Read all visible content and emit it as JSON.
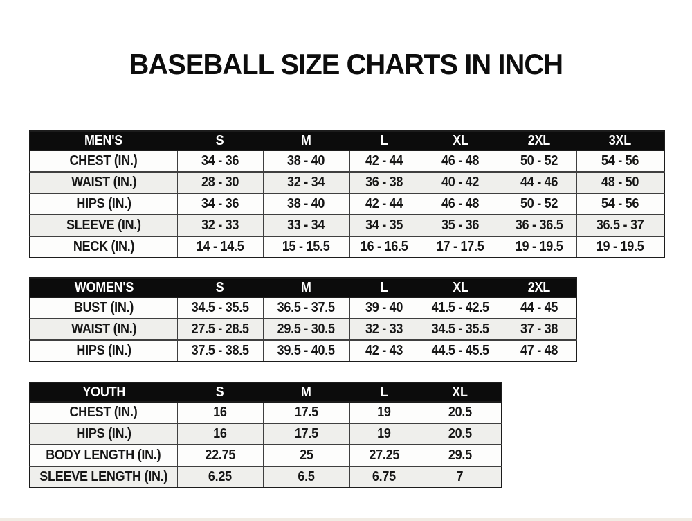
{
  "page_title": "BASEBALL SIZE CHARTS IN INCH",
  "colors": {
    "page_background": "#ffffff",
    "header_bg": "#0c0c0c",
    "header_text": "#ffffff",
    "row_white": "#fdfdfc",
    "row_gray": "#efefec",
    "text": "#161616"
  },
  "chart_data": [
    {
      "type": "table",
      "title": "MEN'S",
      "columns": [
        "MEN'S",
        "S",
        "M",
        "L",
        "XL",
        "2XL",
        "3XL"
      ],
      "rows": [
        [
          "CHEST (IN.)",
          "34 - 36",
          "38 - 40",
          "42 - 44",
          "46 - 48",
          "50 - 52",
          "54 - 56"
        ],
        [
          "WAIST (IN.)",
          "28 - 30",
          "32 - 34",
          "36 - 38",
          "40 - 42",
          "44 - 46",
          "48 - 50"
        ],
        [
          "HIPS (IN.)",
          "34 - 36",
          "38 - 40",
          "42 - 44",
          "46 - 48",
          "50 - 52",
          "54 - 56"
        ],
        [
          "SLEEVE (IN.)",
          "32 - 33",
          "33 - 34",
          "34 - 35",
          "35 - 36",
          "36 - 36.5",
          "36.5 - 37"
        ],
        [
          "NECK (IN.)",
          "14 - 14.5",
          "15 - 15.5",
          "16 - 16.5",
          "17 - 17.5",
          "19 - 19.5",
          "19 - 19.5"
        ]
      ]
    },
    {
      "type": "table",
      "title": "WOMEN'S",
      "columns": [
        "WOMEN'S",
        "S",
        "M",
        "L",
        "XL",
        "2XL"
      ],
      "rows": [
        [
          "BUST (IN.)",
          "34.5 - 35.5",
          "36.5 - 37.5",
          "39 - 40",
          "41.5 - 42.5",
          "44 - 45"
        ],
        [
          "WAIST (IN.)",
          "27.5 - 28.5",
          "29.5 - 30.5",
          "32 - 33",
          "34.5 - 35.5",
          "37 - 38"
        ],
        [
          "HIPS (IN.)",
          "37.5 - 38.5",
          "39.5 - 40.5",
          "42 - 43",
          "44.5 - 45.5",
          "47 - 48"
        ]
      ]
    },
    {
      "type": "table",
      "title": "YOUTH",
      "columns": [
        "YOUTH",
        "S",
        "M",
        "L",
        "XL"
      ],
      "rows": [
        [
          "CHEST (IN.)",
          "16",
          "17.5",
          "19",
          "20.5"
        ],
        [
          "HIPS (IN.)",
          "16",
          "17.5",
          "19",
          "20.5"
        ],
        [
          "BODY LENGTH (IN.)",
          "22.75",
          "25",
          "27.25",
          "29.5"
        ],
        [
          "SLEEVE LENGTH (IN.)",
          "6.25",
          "6.5",
          "6.75",
          "7"
        ]
      ]
    }
  ]
}
